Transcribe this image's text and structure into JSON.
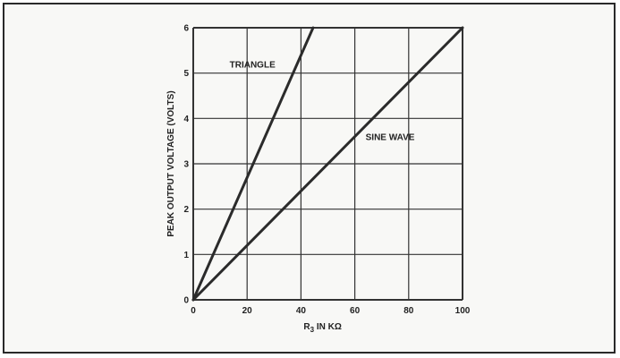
{
  "chart_data": {
    "type": "line",
    "title": "",
    "xlabel_main": "R",
    "xlabel_sub": "3",
    "xlabel_rest": " IN KΩ",
    "ylabel": "PEAK OUTPUT VOLTAGE (VOLTS)",
    "xlim": [
      0,
      100
    ],
    "ylim": [
      0,
      6
    ],
    "xticks": [
      0,
      20,
      40,
      60,
      80,
      100
    ],
    "yticks": [
      0,
      1,
      2,
      3,
      4,
      5,
      6
    ],
    "xtick_labels": [
      "0",
      "20",
      "40",
      "60",
      "80",
      "100"
    ],
    "ytick_labels": [
      "0",
      "1",
      "2",
      "3",
      "4",
      "5",
      "6"
    ],
    "grid": true,
    "series": [
      {
        "name": "TRIANGLE",
        "x": [
          0,
          44.5
        ],
        "y": [
          0,
          6
        ]
      },
      {
        "name": "SINE WAVE",
        "x": [
          0,
          100
        ],
        "y": [
          0,
          6
        ]
      }
    ]
  }
}
